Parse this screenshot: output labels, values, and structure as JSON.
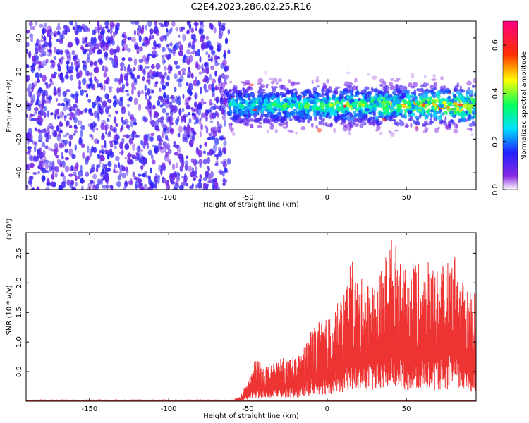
{
  "chart_data": [
    {
      "type": "heatmap",
      "title": "C2E4.2023.286.02.25.R16",
      "xlabel": "Height of straight line (km)",
      "ylabel": "Frequency (Hz)",
      "xlim": [
        -190,
        94
      ],
      "ylim": [
        -50,
        50
      ],
      "xticks": [
        -150,
        -100,
        -50,
        0,
        50
      ],
      "yticks": [
        -40,
        -20,
        0,
        20,
        40
      ],
      "colorbar": {
        "label": "Normalized spectral amplitude",
        "range": [
          0,
          0.7
        ],
        "ticks": [
          0.0,
          0.2,
          0.4,
          0.6
        ],
        "colormap": "rainbow (white-violet-blue-cyan-green-yellow-red-magenta)"
      },
      "regions": [
        {
          "x_range": [
            -190,
            -62
          ],
          "frequency_range": [
            -50,
            50
          ],
          "amplitude": "low (~0.05-0.1)",
          "pattern": "uniform speckled noise"
        },
        {
          "x_range": [
            -62,
            94
          ],
          "frequency_range": [
            -20,
            20
          ],
          "amplitude": "higher (up to ~0.6)",
          "pattern": "band centered near 0 Hz"
        }
      ]
    },
    {
      "type": "area",
      "xlabel": "Height of straight line (km)",
      "ylabel": "SNR (10 * v/v)",
      "y_multiplier": "(x10⁴)",
      "xlim": [
        -190,
        94
      ],
      "ylim": [
        0,
        2.85
      ],
      "xticks": [
        -150,
        -100,
        -50,
        0,
        50
      ],
      "yticks": [
        0.5,
        1.0,
        1.5,
        2.0,
        2.5
      ],
      "series": [
        {
          "color": "#ee3333",
          "x": [
            -190,
            -150,
            -100,
            -60,
            -55,
            -50,
            -45,
            -40,
            -35,
            -30,
            -25,
            -20,
            -15,
            -10,
            -5,
            0,
            5,
            10,
            15,
            20,
            25,
            30,
            35,
            40,
            45,
            50,
            55,
            60,
            65,
            70,
            75,
            80,
            85,
            90,
            94
          ],
          "y": [
            0.02,
            0.02,
            0.02,
            0.02,
            0.08,
            0.35,
            0.75,
            0.65,
            0.6,
            0.75,
            0.7,
            0.75,
            0.9,
            1.25,
            1.35,
            1.4,
            1.6,
            1.8,
            2.45,
            2.0,
            2.2,
            2.0,
            2.3,
            2.8,
            2.6,
            2.15,
            2.45,
            2.2,
            2.4,
            2.3,
            2.3,
            2.6,
            2.0,
            2.0,
            2.0
          ]
        }
      ]
    }
  ]
}
